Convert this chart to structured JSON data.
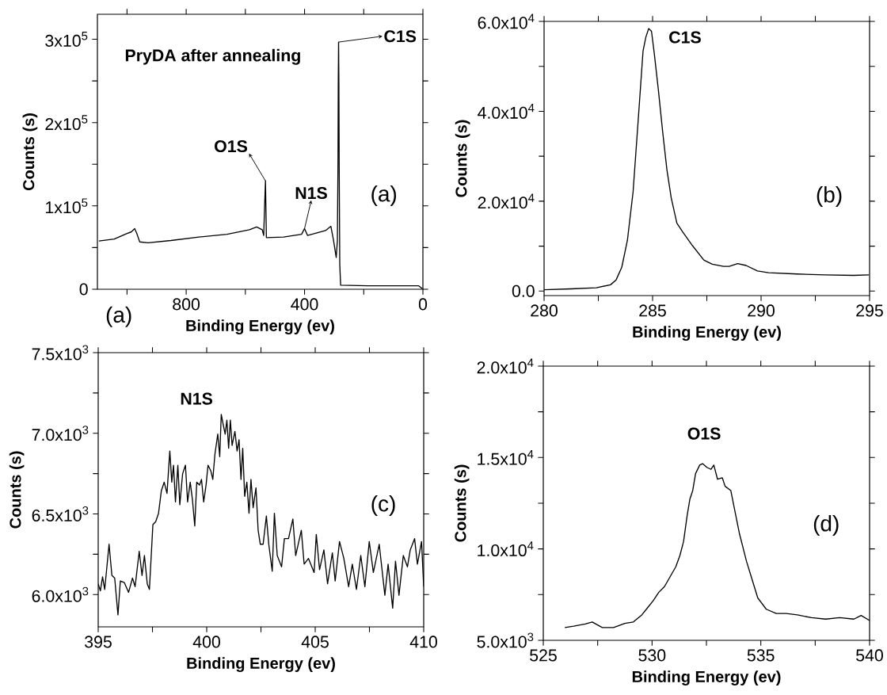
{
  "chart_data": [
    {
      "type": "line",
      "xlabel": "Binding Energy (ev)",
      "ylabel": "Counts (s)",
      "xlim": [
        1100,
        0
      ],
      "ylim": [
        0,
        330000
      ],
      "xticks": [
        {
          "value": 1000,
          "label": null
        },
        800,
        {
          "value": 600,
          "label": null
        },
        400,
        {
          "value": 200,
          "label": null
        },
        0
      ],
      "yticks": [
        0,
        {
          "value": 50000,
          "label": null
        },
        {
          "value": 100000,
          "label": "1x10$^{5}$"
        },
        {
          "value": 150000,
          "label": null
        },
        {
          "value": 200000,
          "label": "2x10$^{5}$"
        },
        {
          "value": 250000,
          "label": null
        },
        {
          "value": 300000,
          "label": "3x10$^{5}$"
        }
      ],
      "x": [
        1095,
        1043,
        1000,
        986,
        974,
        967,
        957,
        929,
        852,
        757,
        662,
        586,
        562,
        543,
        538,
        535,
        532,
        529,
        471,
        410,
        400,
        390,
        329,
        311,
        302,
        293,
        289,
        287,
        286,
        285,
        284,
        283,
        281,
        278,
        186,
        14,
        2
      ],
      "series": [
        {
          "color": "#000000",
          "values": [
            57800,
            60200,
            67000,
            68700,
            72800,
            67000,
            56800,
            55800,
            58500,
            62600,
            66000,
            71400,
            74800,
            71400,
            64600,
            100000,
            130000,
            62000,
            62600,
            66000,
            72800,
            64600,
            70400,
            75500,
            58500,
            38100,
            58500,
            150000,
            250000,
            296600,
            250000,
            150000,
            30000,
            4800,
            4100,
            4100,
            700
          ]
        }
      ],
      "annotations": [
        "PryDA after annealing",
        {
          "text": "C1S",
          "x": 285,
          "y": 296600
        },
        {
          "text": "O1S",
          "x": 532,
          "y": 130000
        },
        {
          "text": "N1S",
          "x": 400,
          "y": 72800
        },
        "(a)",
        "(a)"
      ]
    },
    {
      "type": "line",
      "xlabel": "Binding Energy (ev)",
      "ylabel": "Counts (s)",
      "xlim": [
        280,
        295
      ],
      "ylim": [
        -1000,
        60000
      ],
      "xticks": [
        280,
        {
          "value": 282.5,
          "label": null
        },
        285,
        {
          "value": 287.5,
          "label": null
        },
        290,
        {
          "value": 292.5,
          "label": null
        },
        295
      ],
      "yticks": [
        {
          "value": 0,
          "label": "0.0"
        },
        {
          "value": 10000,
          "label": null
        },
        {
          "value": 20000,
          "label": "2.0x10$^{4}$"
        },
        {
          "value": 30000,
          "label": null
        },
        {
          "value": 40000,
          "label": "4.0x10$^{4}$"
        },
        {
          "value": 50000,
          "label": null
        },
        {
          "value": 60000,
          "label": "6.0x10$^{4}$"
        }
      ],
      "x": [
        280,
        281.24,
        282.41,
        283.06,
        283.32,
        283.58,
        283.84,
        284.1,
        284.36,
        284.56,
        284.69,
        284.82,
        284.95,
        285.08,
        285.27,
        285.47,
        285.66,
        285.86,
        286.12,
        286.38,
        286.84,
        287.36,
        287.75,
        288.27,
        288.53,
        288.92,
        289.31,
        289.83,
        290.35,
        291.65,
        292.96,
        294.26,
        294.97
      ],
      "series": [
        {
          "color": "#000000",
          "values": [
            300,
            500,
            750,
            1400,
            2500,
            5300,
            11300,
            22000,
            39600,
            53400,
            56500,
            58400,
            57800,
            52800,
            44600,
            35200,
            27000,
            20700,
            15100,
            13200,
            10100,
            6900,
            6000,
            5500,
            5500,
            6100,
            5700,
            4500,
            4100,
            3800,
            3600,
            3500,
            3600
          ]
        }
      ],
      "annotations": [
        "C1S",
        "(b)"
      ]
    },
    {
      "type": "line",
      "xlabel": "Binding Energy (ev)",
      "ylabel": "Counts (s)",
      "xlim": [
        395,
        410
      ],
      "ylim": [
        5800,
        7500
      ],
      "xticks": [
        395,
        {
          "value": 397.5,
          "label": null
        },
        400,
        {
          "value": 402.5,
          "label": null
        },
        405,
        {
          "value": 407.5,
          "label": null
        },
        410
      ],
      "yticks": [
        {
          "value": 6000,
          "label": "6.0x10$^{3}$"
        },
        {
          "value": 6250,
          "label": null
        },
        {
          "value": 6500,
          "label": "6.5x10$^{3}$"
        },
        {
          "value": 6750,
          "label": null
        },
        {
          "value": 7000,
          "label": "7.0x10$^{3}$"
        },
        {
          "value": 7250,
          "label": null
        },
        {
          "value": 7500,
          "label": "7.5x10$^{3}$"
        }
      ],
      "x": [
        395.0,
        395.1,
        395.2,
        395.3,
        395.5,
        395.63,
        395.76,
        395.91,
        396.02,
        396.2,
        396.4,
        396.58,
        396.7,
        396.89,
        397.02,
        397.13,
        397.26,
        397.36,
        397.52,
        397.65,
        397.78,
        397.91,
        398.04,
        398.17,
        398.3,
        398.39,
        398.47,
        398.56,
        398.67,
        398.76,
        398.89,
        399.02,
        399.12,
        399.24,
        399.34,
        399.45,
        399.54,
        399.67,
        399.76,
        399.86,
        399.97,
        400.06,
        400.19,
        400.28,
        400.38,
        400.51,
        400.6,
        400.67,
        400.77,
        400.85,
        400.93,
        401.01,
        401.09,
        401.17,
        401.3,
        401.4,
        401.49,
        401.58,
        401.66,
        401.75,
        401.85,
        401.95,
        402.04,
        402.14,
        402.27,
        402.37,
        402.47,
        402.6,
        402.75,
        402.86,
        403.02,
        403.12,
        403.25,
        403.45,
        403.58,
        403.77,
        403.97,
        404.1,
        404.36,
        404.49,
        404.69,
        404.95,
        405.05,
        405.2,
        405.4,
        405.57,
        405.79,
        405.92,
        406.12,
        406.32,
        406.54,
        406.71,
        406.9,
        407.1,
        407.29,
        407.49,
        407.68,
        407.95,
        408.21,
        408.36,
        408.57,
        408.7,
        408.86,
        409.06,
        409.25,
        409.38,
        409.58,
        409.71,
        409.9,
        410.0
      ],
      "series": [
        {
          "color": "#000000",
          "values": [
            6067,
            6023,
            6110,
            6032,
            6312,
            6119,
            6102,
            5874,
            6084,
            6075,
            6014,
            6102,
            6049,
            6268,
            6119,
            6242,
            6067,
            6032,
            6434,
            6452,
            6504,
            6644,
            6697,
            6627,
            6890,
            6697,
            6802,
            6574,
            6802,
            6557,
            6749,
            6802,
            6574,
            6697,
            6592,
            6425,
            6697,
            6679,
            6714,
            6574,
            6679,
            6802,
            6767,
            6714,
            6872,
            6995,
            6855,
            7117,
            7047,
            6995,
            7082,
            6907,
            7082,
            6925,
            7012,
            6890,
            6960,
            6714,
            6907,
            6609,
            6697,
            6504,
            6714,
            6539,
            6662,
            6399,
            6312,
            6312,
            6487,
            6312,
            6145,
            6504,
            6242,
            6172,
            6347,
            6347,
            6469,
            6242,
            6399,
            6189,
            6224,
            6137,
            6373,
            6154,
            6277,
            6067,
            6259,
            6084,
            6329,
            6224,
            6049,
            6189,
            6032,
            6242,
            6049,
            6329,
            6137,
            6312,
            5996,
            6189,
            5916,
            6207,
            5996,
            6242,
            6172,
            6277,
            6347,
            6189,
            6329,
            6049
          ]
        }
      ],
      "annotations": [
        "N1S",
        "(c)"
      ]
    },
    {
      "type": "line",
      "xlabel": "Binding Energy (ev)",
      "ylabel": "Counts (s)",
      "xlim": [
        525,
        540
      ],
      "ylim": [
        5000,
        20000
      ],
      "xticks": [
        525,
        {
          "value": 527.5,
          "label": null
        },
        530,
        {
          "value": 532.5,
          "label": null
        },
        535,
        {
          "value": 537.5,
          "label": null
        },
        540
      ],
      "yticks": [
        {
          "value": 5000,
          "label": "5.0x10$^{3}$"
        },
        {
          "value": 7500,
          "label": null
        },
        {
          "value": 10000,
          "label": "1.0x10$^{4}$"
        },
        {
          "value": 12500,
          "label": null
        },
        {
          "value": 15000,
          "label": "1.5x10$^{4}$"
        },
        {
          "value": 17500,
          "label": null
        },
        {
          "value": 20000,
          "label": "2.0x10$^{4}$"
        }
      ],
      "x": [
        525.99,
        526.4,
        526.93,
        527.25,
        527.71,
        528.23,
        528.75,
        529.14,
        529.53,
        529.79,
        530.05,
        530.31,
        530.57,
        530.83,
        531.09,
        531.28,
        531.45,
        531.61,
        531.74,
        531.87,
        532.0,
        532.19,
        532.32,
        532.52,
        532.71,
        532.84,
        533.01,
        533.23,
        533.36,
        533.62,
        533.75,
        534.01,
        534.34,
        534.54,
        534.86,
        535.25,
        535.71,
        536.16,
        536.68,
        537.33,
        537.98,
        538.63,
        539.28,
        539.61,
        540.0
      ],
      "series": [
        {
          "color": "#000000",
          "values": [
            5696,
            5773,
            5897,
            6005,
            5696,
            5696,
            5928,
            6005,
            6391,
            6778,
            7164,
            7628,
            7937,
            8479,
            9020,
            9638,
            10411,
            11802,
            12730,
            13194,
            14121,
            14585,
            14663,
            14461,
            14353,
            14585,
            13812,
            13890,
            13426,
            13194,
            12421,
            10875,
            9329,
            8556,
            7319,
            6701,
            6469,
            6469,
            6391,
            6237,
            6159,
            6237,
            6159,
            6360,
            6082
          ]
        }
      ],
      "annotations": [
        "O1S",
        "(d)"
      ]
    }
  ]
}
